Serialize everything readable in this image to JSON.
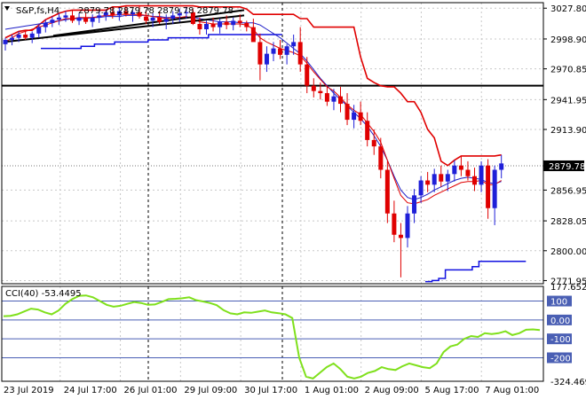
{
  "symbol_label": "S&P,fs,H4",
  "ohlc_label": "2879.78 2879.78 2879.78 2879.78",
  "last_price_label": "2879.78",
  "colors": {
    "background": "#ffffff",
    "axis": "#000000",
    "grid": "#c8c8c8",
    "bull": "#1f1fd8",
    "bear": "#e00000",
    "ma_fast": "#e00000",
    "ma_slow": "#1d1dc6",
    "support_line": "#1010e0",
    "trendline": "#000000",
    "cci": "#7fe01c",
    "cci_levels": "#4a5fb4",
    "price_marker_bg": "#000000",
    "price_marker_text": "#ffffff"
  },
  "chart_data": [
    {
      "type": "candlestick",
      "title": "S&P,fs,H4",
      "price_axis_ticks": [
        "3027.80",
        "2998.90",
        "2970.85",
        "2941.95",
        "2913.90",
        "2856.95",
        "2828.05",
        "2800.00",
        "2771.95"
      ],
      "time_axis_ticks": [
        "23 Jul 2019",
        "24 Jul 17:00",
        "26 Jul 01:00",
        "29 Jul 09:00",
        "30 Jul 17:00",
        "1 Aug 01:00",
        "2 Aug 09:00",
        "5 Aug 17:00",
        "7 Aug 01:00"
      ],
      "ylim": [
        2769,
        3033
      ],
      "grid": true,
      "last_price": 2879.78,
      "horizontal_line": 2955,
      "series": [
        {
          "kind": "ohlc",
          "values": [
            [
              2994,
              3000,
              2988,
              2998
            ],
            [
              2998,
              3003,
              2993,
              3000
            ],
            [
              3000,
              3006,
              2996,
              3003
            ],
            [
              3003,
              3007,
              2998,
              3000
            ],
            [
              3000,
              3006,
              2995,
              3004
            ],
            [
              3004,
              3012,
              3000,
              3010
            ],
            [
              3010,
              3017,
              3005,
              3014
            ],
            [
              3014,
              3020,
              3010,
              3017
            ],
            [
              3017,
              3023,
              3012,
              3019
            ],
            [
              3019,
              3025,
              3015,
              3021
            ],
            [
              3021,
              3026,
              3014,
              3016
            ],
            [
              3016,
              3023,
              3012,
              3019
            ],
            [
              3019,
              3024,
              3013,
              3015
            ],
            [
              3015,
              3022,
              3010,
              3019
            ],
            [
              3019,
              3025,
              3014,
              3021
            ],
            [
              3021,
              3026,
              3016,
              3024
            ],
            [
              3024,
              3029,
              3018,
              3021
            ],
            [
              3021,
              3028,
              3016,
              3025
            ],
            [
              3025,
              3030,
              3020,
              3022
            ],
            [
              3022,
              3026,
              3015,
              3024
            ],
            [
              3024,
              3030,
              3018,
              3020
            ],
            [
              3020,
              3026,
              3013,
              3016
            ],
            [
              3016,
              3023,
              3010,
              3019
            ],
            [
              3019,
              3025,
              3013,
              3015
            ],
            [
              3015,
              3022,
              3008,
              3018
            ],
            [
              3018,
              3025,
              3013,
              3021
            ],
            [
              3021,
              3027,
              3015,
              3023
            ],
            [
              3023,
              3029,
              3018,
              3024
            ],
            [
              3024,
              3027,
              3012,
              3013
            ],
            [
              3013,
              3019,
              3003,
              3008
            ],
            [
              3008,
              3016,
              3003,
              3013
            ],
            [
              3013,
              3019,
              3006,
              3010
            ],
            [
              3010,
              3018,
              3004,
              3015
            ],
            [
              3015,
              3021,
              3008,
              3012
            ],
            [
              3012,
              3019,
              3007,
              3016
            ],
            [
              3016,
              3022,
              3010,
              3014
            ],
            [
              3014,
              3016,
              3006,
              3010
            ],
            [
              3010,
              3018,
              2999,
              2996
            ],
            [
              2996,
              3004,
              2960,
              2975
            ],
            [
              2975,
              2992,
              2968,
              2985
            ],
            [
              2985,
              2996,
              2978,
              2990
            ],
            [
              2990,
              2998,
              2980,
              2984
            ],
            [
              2984,
              2994,
              2975,
              2992
            ],
            [
              2992,
              3003,
              2984,
              2996
            ],
            [
              2996,
              3010,
              2968,
              2975
            ],
            [
              2975,
              2982,
              2948,
              2955
            ],
            [
              2955,
              2962,
              2944,
              2950
            ],
            [
              2950,
              2958,
              2942,
              2948
            ],
            [
              2948,
              2955,
              2936,
              2940
            ],
            [
              2940,
              2952,
              2932,
              2945
            ],
            [
              2945,
              2954,
              2930,
              2938
            ],
            [
              2938,
              2948,
              2918,
              2923
            ],
            [
              2923,
              2937,
              2915,
              2930
            ],
            [
              2930,
              2940,
              2918,
              2922
            ],
            [
              2922,
              2930,
              2898,
              2904
            ],
            [
              2904,
              2914,
              2890,
              2898
            ],
            [
              2898,
              2906,
              2868,
              2876
            ],
            [
              2876,
              2884,
              2826,
              2835
            ],
            [
              2835,
              2847,
              2808,
              2815
            ],
            [
              2815,
              2826,
              2775,
              2812
            ],
            [
              2812,
              2842,
              2803,
              2835
            ],
            [
              2835,
              2858,
              2826,
              2852
            ],
            [
              2852,
              2870,
              2845,
              2866
            ],
            [
              2866,
              2874,
              2855,
              2862
            ],
            [
              2862,
              2877,
              2855,
              2872
            ],
            [
              2872,
              2880,
              2860,
              2865
            ],
            [
              2865,
              2876,
              2856,
              2872
            ],
            [
              2872,
              2885,
              2865,
              2880
            ],
            [
              2880,
              2889,
              2870,
              2876
            ],
            [
              2876,
              2884,
              2866,
              2870
            ],
            [
              2870,
              2878,
              2856,
              2862
            ],
            [
              2862,
              2884,
              2855,
              2880
            ],
            [
              2880,
              2886,
              2830,
              2840
            ],
            [
              2840,
              2880,
              2824,
              2876
            ],
            [
              2876,
              2890,
              2868,
              2882
            ]
          ]
        },
        {
          "kind": "line",
          "values": [
            2996,
            3000,
            3004,
            3006,
            3008,
            3010,
            3012,
            3014,
            3016,
            3018,
            3018,
            3019,
            3019,
            3019,
            3020,
            3021,
            3021,
            3022,
            3022,
            3022,
            3022,
            3021,
            3020,
            3019,
            3018,
            3019,
            3019,
            3020,
            3018,
            3015,
            3014,
            3013,
            3013,
            3013,
            3013,
            3013,
            3012,
            3008,
            3000,
            2996,
            2993,
            2990,
            2988,
            2986,
            2983,
            2976,
            2968,
            2961,
            2954,
            2950,
            2944,
            2937,
            2932,
            2928,
            2920,
            2912,
            2902,
            2885,
            2868,
            2852,
            2845,
            2844,
            2846,
            2848,
            2852,
            2855,
            2858,
            2861,
            2864,
            2865,
            2865,
            2866,
            2862,
            2862,
            2866
          ]
        },
        {
          "kind": "line",
          "values": [
            3008,
            3009,
            3010,
            3011,
            3012,
            3013,
            3014,
            3015,
            3016,
            3017,
            3018,
            3018,
            3018,
            3019,
            3019,
            3020,
            3020,
            3020,
            3021,
            3021,
            3021,
            3021,
            3020,
            3020,
            3019,
            3019,
            3019,
            3019,
            3019,
            3018,
            3017,
            3016,
            3015,
            3015,
            3015,
            3014,
            3014,
            3014,
            3012,
            3008,
            3004,
            3000,
            2995,
            2990,
            2985,
            2978,
            2970,
            2962,
            2955,
            2948,
            2942,
            2936,
            2930,
            2924,
            2917,
            2908,
            2898,
            2885,
            2870,
            2857,
            2850,
            2848,
            2850,
            2853,
            2857,
            2860,
            2863,
            2866,
            2868,
            2869,
            2868,
            2867,
            2864,
            2863,
            2865
          ]
        },
        {
          "kind": "step",
          "values": [
            2990,
            2990,
            2990,
            2990,
            2990,
            2990,
            2992,
            2992,
            2994,
            2994,
            2994,
            2996,
            2996,
            2996,
            2996,
            2996,
            2998,
            2998,
            2998,
            3000,
            3000,
            3000,
            3000,
            3000,
            3000,
            3003,
            3003,
            3003,
            3003,
            3003,
            3003,
            3003,
            3003,
            3003,
            3003,
            3003,
            3003
          ]
        },
        {
          "kind": "step",
          "values": [
            2771,
            2772,
            2774,
            2782,
            2782,
            2782,
            2782,
            2785,
            2790,
            2790,
            2790,
            2790,
            2790,
            2790,
            2790,
            2790
          ]
        },
        {
          "kind": "trendline",
          "values": [
            [
              2996,
              3021
            ],
            [
              3002,
              3026
            ]
          ]
        }
      ]
    },
    {
      "type": "line",
      "title": "CCI(40) -53.4495",
      "axis_labels": [
        "177.6525",
        "100",
        "0.00",
        "-100",
        "-200",
        "-324.4695"
      ],
      "ylim": [
        -324.4695,
        177.6525
      ],
      "levels": [
        100,
        0,
        -100,
        -200
      ],
      "series": [
        {
          "name": "CCI(40) -53.4495",
          "values": [
            20,
            22,
            30,
            45,
            60,
            55,
            40,
            30,
            50,
            85,
            110,
            128,
            130,
            120,
            100,
            80,
            70,
            75,
            85,
            95,
            90,
            80,
            82,
            95,
            110,
            112,
            115,
            120,
            105,
            98,
            90,
            78,
            52,
            35,
            30,
            40,
            38,
            44,
            50,
            40,
            36,
            30,
            10,
            -200,
            -300,
            -310,
            -280,
            -250,
            -230,
            -260,
            -300,
            -310,
            -300,
            -280,
            -270,
            -250,
            -260,
            -265,
            -245,
            -230,
            -240,
            -250,
            -255,
            -230,
            -170,
            -140,
            -130,
            -100,
            -85,
            -90,
            -70,
            -75,
            -70,
            -60,
            -80,
            -70,
            -52,
            -50,
            -53
          ]
        }
      ]
    }
  ]
}
